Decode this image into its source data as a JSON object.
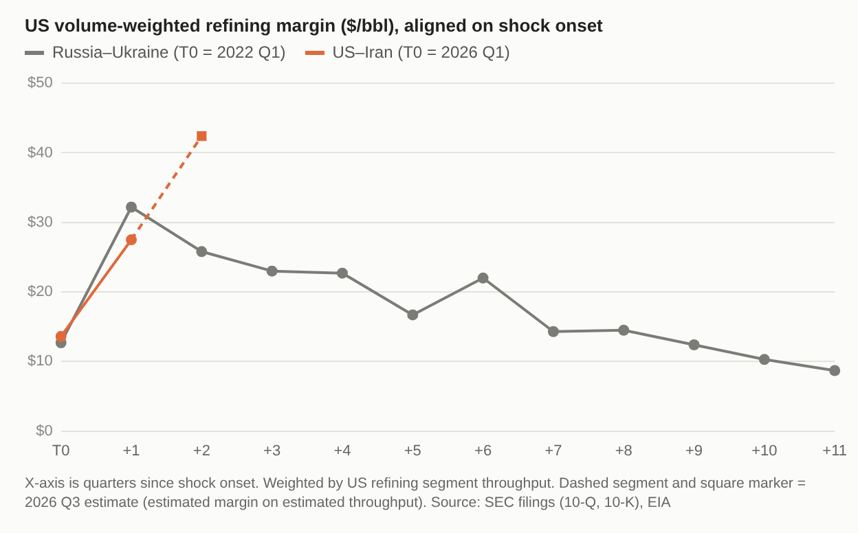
{
  "chart_data": {
    "type": "line",
    "title": "US volume-weighted refining margin ($/bbl), aligned on shock onset",
    "categories": [
      "T0",
      "+1",
      "+2",
      "+3",
      "+4",
      "+5",
      "+6",
      "+7",
      "+8",
      "+9",
      "+10",
      "+11"
    ],
    "series": [
      {
        "name": "Russia–Ukraine (T0 = 2022 Q1)",
        "color": "#7b7b77",
        "values": [
          12.7,
          32.2,
          25.8,
          23.0,
          22.7,
          16.7,
          22.0,
          14.3,
          14.5,
          12.4,
          10.3,
          8.7
        ]
      },
      {
        "name": "US–Iran (T0 = 2026 Q1)",
        "color": "#e0693a",
        "values": [
          13.6,
          27.5,
          null,
          null,
          null,
          null,
          null,
          null,
          null,
          null,
          null,
          null
        ]
      },
      {
        "color": "#e0693a",
        "line_style": "dashed",
        "marker": "square",
        "values": [
          null,
          27.5,
          42.4,
          null,
          null,
          null,
          null,
          null,
          null,
          null,
          null,
          null
        ]
      }
    ],
    "ylim": [
      0,
      50
    ],
    "yticks": [
      {
        "value": 0,
        "label": "$0"
      },
      {
        "value": 10,
        "label": "$10"
      },
      {
        "value": 20,
        "label": "$20"
      },
      {
        "value": 30,
        "label": "$30"
      },
      {
        "value": 40,
        "label": "$40"
      },
      {
        "value": 50,
        "label": "$50"
      }
    ],
    "grid": "y",
    "legend": "top left",
    "marker": "circle",
    "line_style": "solid",
    "annotations": [
      "X-axis is quarters since shock onset. Weighted by US refining segment throughput. Dashed segment and square marker = 2026 Q3 estimate (estimated margin on estimated throughput). Source: SEC filings (10-Q, 10-K), EIA"
    ]
  }
}
